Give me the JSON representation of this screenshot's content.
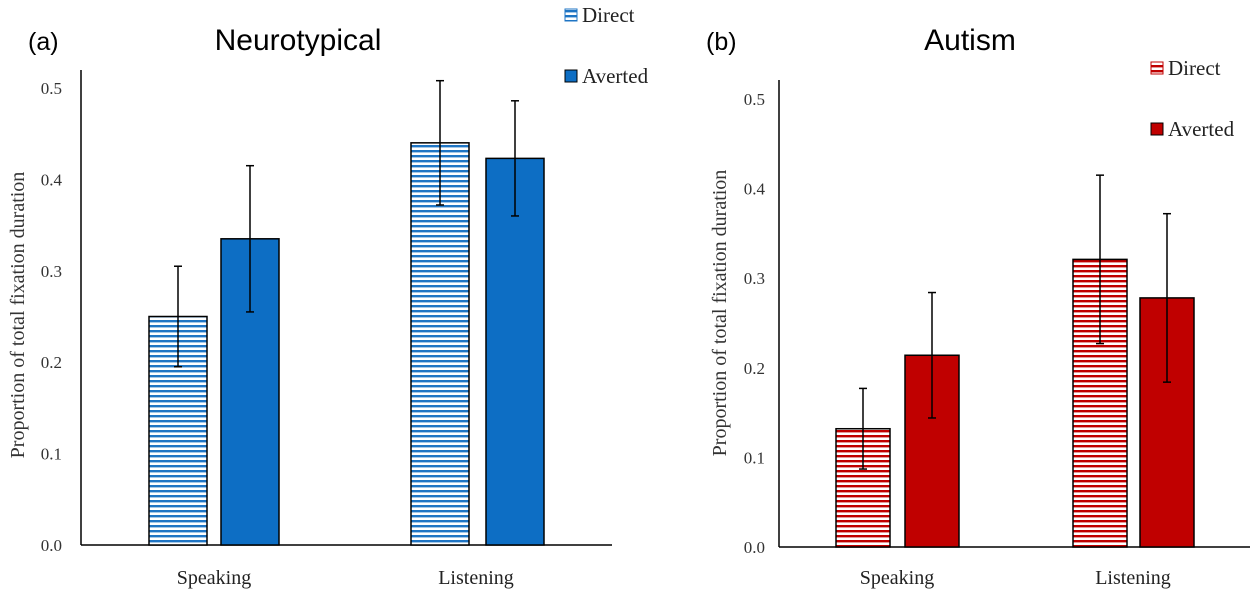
{
  "panels": [
    {
      "panel_label": "(a)",
      "chart_data": {
        "type": "bar",
        "title": "Neurotypical",
        "xlabel": "",
        "ylabel": "Proportion of total fixation duration",
        "ylim": [
          0,
          0.5
        ],
        "yticks": [
          "0.0",
          "0.1",
          "0.2",
          "0.3",
          "0.4",
          "0.5"
        ],
        "categories": [
          "Speaking",
          "Listening"
        ],
        "series": [
          {
            "name": "Direct",
            "values": [
              0.25,
              0.44
            ],
            "error": [
              0.055,
              0.068
            ],
            "color": "#1f75c4",
            "pattern": "striped"
          },
          {
            "name": "Averted",
            "values": [
              0.335,
              0.423
            ],
            "error": [
              0.08,
              0.063
            ],
            "color": "#0d6ec4",
            "pattern": "solid"
          }
        ],
        "legend": "top-right"
      }
    },
    {
      "panel_label": "(b)",
      "chart_data": {
        "type": "bar",
        "title": "Autism",
        "xlabel": "",
        "ylabel": "Proportion of total fixation duration",
        "ylim": [
          0,
          0.5
        ],
        "yticks": [
          "0.0",
          "0.1",
          "0.2",
          "0.3",
          "0.4",
          "0.5"
        ],
        "categories": [
          "Speaking",
          "Listening"
        ],
        "series": [
          {
            "name": "Direct",
            "values": [
              0.132,
              0.321
            ],
            "error": [
              0.045,
              0.094
            ],
            "color": "#c00000",
            "pattern": "striped"
          },
          {
            "name": "Averted",
            "values": [
              0.214,
              0.278
            ],
            "error": [
              0.07,
              0.094
            ],
            "color": "#c00000",
            "pattern": "solid"
          }
        ],
        "legend": "top-right"
      }
    }
  ]
}
